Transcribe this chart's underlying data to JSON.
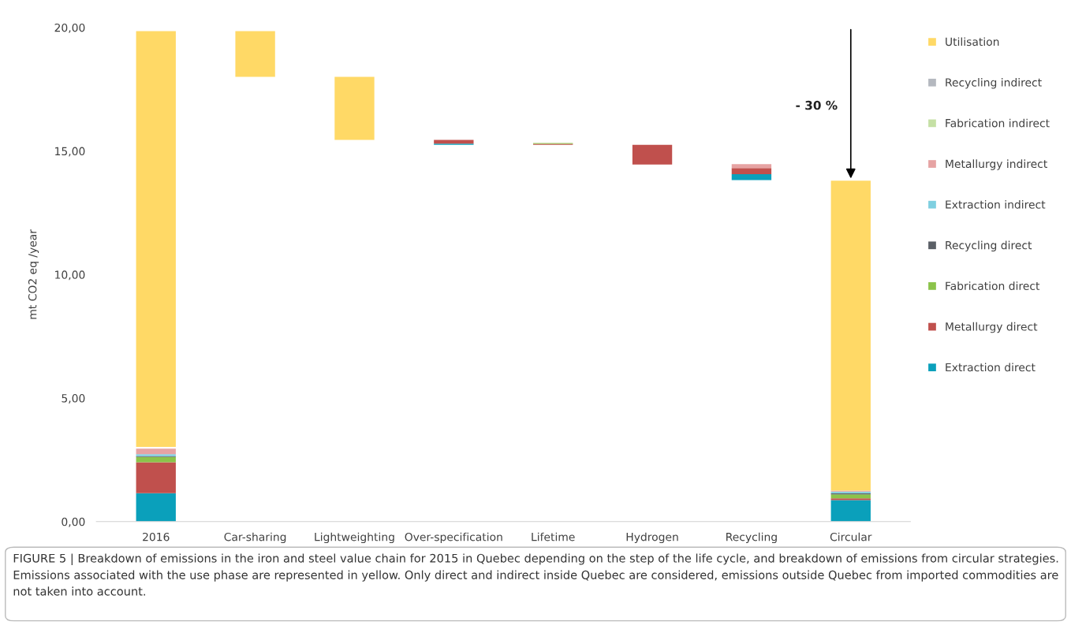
{
  "chart_data": {
    "type": "bar",
    "categories": [
      "2016",
      "Car-sharing",
      "Lightweighting",
      "Over-specification",
      "Lifetime",
      "Hydrogen",
      "Recycling",
      "Circular"
    ],
    "series": [
      {
        "name": "Extraction direct",
        "color": "#0aa0bb",
        "values": [
          1.15,
          null,
          null,
          0.05,
          null,
          null,
          0.24,
          0.87
        ],
        "base": [
          0,
          null,
          null,
          15.25,
          null,
          null,
          13.82,
          0
        ]
      },
      {
        "name": "Metallurgy direct",
        "color": "#c0504d",
        "values": [
          1.25,
          null,
          null,
          0.15,
          0.04,
          0.8,
          0.25,
          0.07
        ],
        "base": [
          1.15,
          null,
          null,
          15.3,
          15.25,
          14.45,
          14.06,
          0.87
        ]
      },
      {
        "name": "Fabrication direct",
        "color": "#8bc34a",
        "values": [
          0.22,
          null,
          null,
          null,
          0.03,
          null,
          null,
          0.16
        ],
        "base": [
          2.4,
          null,
          null,
          null,
          15.29,
          null,
          null,
          0.94
        ]
      },
      {
        "name": "Recycling direct",
        "color": "#5a5f66",
        "values": [
          0.03,
          null,
          null,
          null,
          null,
          null,
          null,
          0.05
        ],
        "base": [
          2.62,
          null,
          null,
          null,
          null,
          null,
          null,
          1.1
        ]
      },
      {
        "name": "Extraction indirect",
        "color": "#7ecfe0",
        "values": [
          0.08,
          null,
          null,
          null,
          null,
          null,
          null,
          0.06
        ],
        "base": [
          2.65,
          null,
          null,
          null,
          null,
          null,
          null,
          1.15
        ]
      },
      {
        "name": "Metallurgy indirect",
        "color": "#e6a3a3",
        "values": [
          0.22,
          null,
          null,
          null,
          null,
          null,
          0.16,
          0.04
        ],
        "base": [
          2.73,
          null,
          null,
          null,
          null,
          null,
          14.31,
          1.21
        ]
      },
      {
        "name": "Fabrication indirect",
        "color": "#c5e0a5",
        "values": [
          null,
          null,
          null,
          null,
          null,
          null,
          null,
          null
        ],
        "base": [
          null,
          null,
          null,
          null,
          null,
          null,
          null,
          null
        ]
      },
      {
        "name": "Recycling indirect",
        "color": "#b4b8bf",
        "values": [
          null,
          null,
          null,
          null,
          null,
          null,
          null,
          null
        ],
        "base": [
          null,
          null,
          null,
          null,
          null,
          null,
          null,
          null
        ]
      },
      {
        "name": "Utilisation",
        "color": "#ffd966",
        "values": [
          16.83,
          1.85,
          2.55,
          null,
          null,
          null,
          null,
          12.55
        ],
        "base": [
          3.02,
          18.0,
          15.45,
          null,
          null,
          null,
          null,
          1.25
        ]
      }
    ],
    "ylabel": "mt CO2 eq /year",
    "ylim": [
      0,
      20
    ],
    "yticks": [
      {
        "value": 0,
        "label": "0,00"
      },
      {
        "value": 5,
        "label": "5,00"
      },
      {
        "value": 10,
        "label": "10,00"
      },
      {
        "value": 15,
        "label": "15,00"
      },
      {
        "value": 20,
        "label": "20,00"
      }
    ],
    "legend": "right",
    "annotations": [
      "- 30 %",
      "FIGURE 5 | Breakdown of emissions in the iron and steel value chain for 2015 in Quebec depending on the step of the life cycle, and breakdown of emissions from circular strategies. Emissions associated with the use phase are represented in yellow. Only direct and indirect inside Quebec are considered, emissions outside Quebec from imported commodities are not taken into account."
    ]
  }
}
